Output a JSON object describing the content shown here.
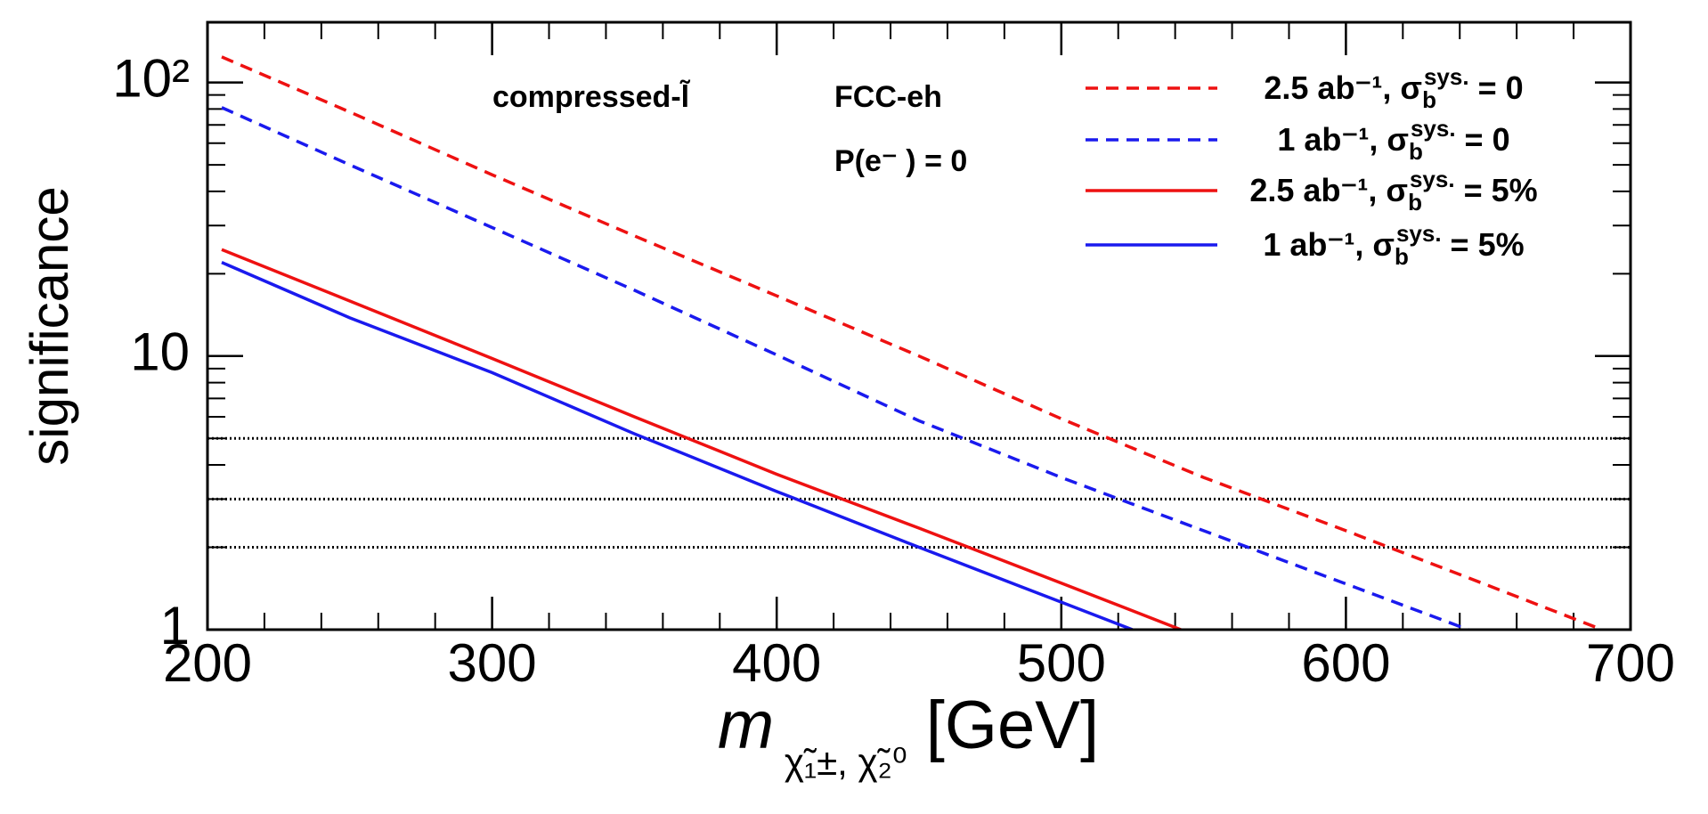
{
  "chart_data": {
    "type": "line",
    "y_label": "significance",
    "x_label": "m χ̃₁±, χ̃₂⁰  [GeV]",
    "annotations": [
      "compressed-l̃",
      "FCC-eh",
      "P(e⁻ ) = 0"
    ],
    "xlim": [
      200,
      700
    ],
    "xticks": [
      200,
      300,
      400,
      500,
      600,
      700
    ],
    "ylim": [
      1,
      166
    ],
    "yticks": [
      1,
      10,
      {
        "value": 100,
        "label": "10²"
      }
    ],
    "log_y": true,
    "reference_lines": [
      2,
      3,
      5
    ],
    "series": [
      {
        "name": "2.5 ab⁻¹, σbsys. = 0",
        "color": "#ee1111",
        "style": "dashed",
        "x": [
          205,
          250,
          300,
          350,
          400,
          450,
          500,
          550,
          600,
          650,
          690
        ],
        "values": [
          124,
          78,
          46,
          27.5,
          16.6,
          10,
          5.9,
          3.6,
          2.3,
          1.45,
          1.0
        ]
      },
      {
        "name": "1 ab⁻¹, σbsys. = 0",
        "color": "#1a1aee",
        "style": "dashed",
        "x": [
          205,
          250,
          300,
          350,
          400,
          450,
          500,
          550,
          600,
          643
        ],
        "values": [
          81,
          50,
          29.5,
          17.4,
          10.1,
          5.8,
          3.6,
          2.3,
          1.47,
          1.0
        ]
      },
      {
        "name": "2.5 ab⁻¹, σbsys. = 5%",
        "color": "#ee1111",
        "style": "solid",
        "x": [
          205,
          250,
          300,
          350,
          400,
          450,
          500,
          542
        ],
        "values": [
          24.5,
          15.9,
          9.8,
          6.0,
          3.7,
          2.35,
          1.48,
          1.0
        ]
      },
      {
        "name": "1 ab⁻¹, σbsys. = 5%",
        "color": "#1a1aee",
        "style": "solid",
        "x": [
          205,
          250,
          300,
          350,
          400,
          450,
          500,
          525
        ],
        "values": [
          22,
          13.8,
          8.7,
          5.2,
          3.2,
          2.0,
          1.26,
          1.0
        ]
      }
    ]
  }
}
